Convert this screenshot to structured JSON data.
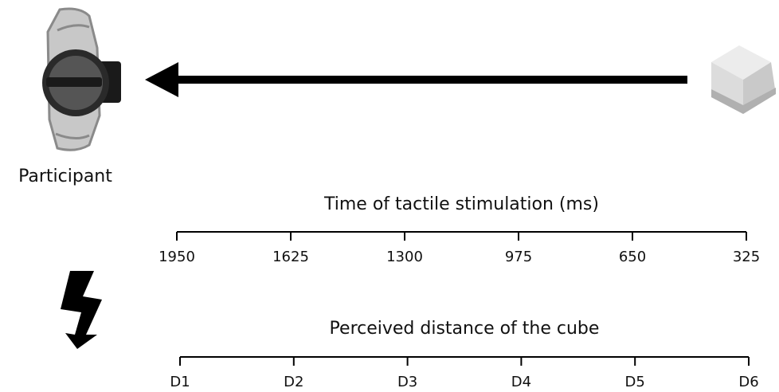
{
  "participant_label": "Participant",
  "axes": [
    {
      "title": "Time of tactile stimulation (ms)",
      "ticks": [
        1950,
        1625,
        1300,
        975,
        650,
        325
      ]
    },
    {
      "title": "Perceived distance of the cube",
      "ticks": [
        "D1",
        "D2",
        "D3",
        "D4",
        "D5",
        "D6"
      ]
    }
  ]
}
